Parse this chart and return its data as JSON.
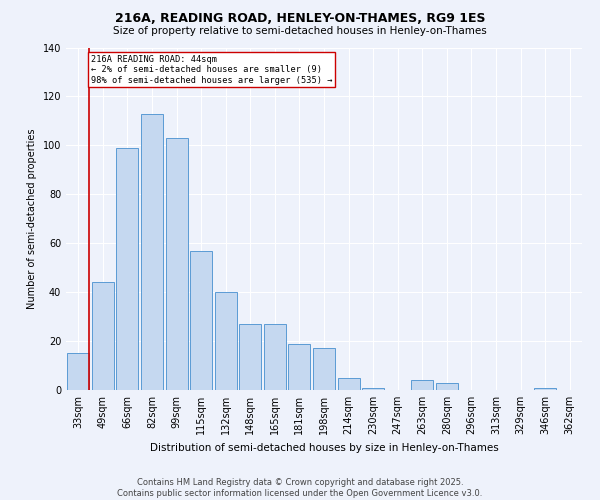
{
  "title": "216A, READING ROAD, HENLEY-ON-THAMES, RG9 1ES",
  "subtitle": "Size of property relative to semi-detached houses in Henley-on-Thames",
  "xlabel": "Distribution of semi-detached houses by size in Henley-on-Thames",
  "ylabel": "Number of semi-detached properties",
  "categories": [
    "33sqm",
    "49sqm",
    "66sqm",
    "82sqm",
    "99sqm",
    "115sqm",
    "132sqm",
    "148sqm",
    "165sqm",
    "181sqm",
    "198sqm",
    "214sqm",
    "230sqm",
    "247sqm",
    "263sqm",
    "280sqm",
    "296sqm",
    "313sqm",
    "329sqm",
    "346sqm",
    "362sqm"
  ],
  "values": [
    15,
    44,
    99,
    113,
    103,
    57,
    40,
    27,
    27,
    19,
    17,
    5,
    1,
    0,
    4,
    3,
    0,
    0,
    0,
    1,
    0
  ],
  "bar_color": "#c5d8f0",
  "bar_edge_color": "#5b9bd5",
  "marker_color": "#cc0000",
  "annotation_title": "216A READING ROAD: 44sqm",
  "annotation_line1": "← 2% of semi-detached houses are smaller (9)",
  "annotation_line2": "98% of semi-detached houses are larger (535) →",
  "ylim": [
    0,
    140
  ],
  "yticks": [
    0,
    20,
    40,
    60,
    80,
    100,
    120,
    140
  ],
  "background_color": "#eef2fb",
  "footer": "Contains HM Land Registry data © Crown copyright and database right 2025.\nContains public sector information licensed under the Open Government Licence v3.0.",
  "grid_color": "#ffffff",
  "marker_bar_index": 0,
  "title_fontsize": 9,
  "subtitle_fontsize": 7.5,
  "xlabel_fontsize": 7.5,
  "ylabel_fontsize": 7,
  "tick_fontsize": 7,
  "footer_fontsize": 6
}
